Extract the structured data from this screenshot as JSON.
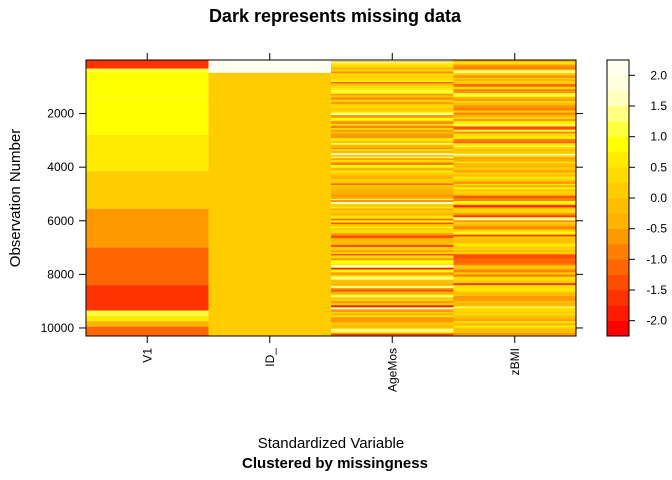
{
  "chart_data": {
    "type": "heatmap",
    "title": "Dark represents missing data",
    "xlabel": "Standardized Variable",
    "xlabel_sub": "Clustered by missingness",
    "ylabel": "Observation Number",
    "ylim": [
      10300,
      1
    ],
    "yticks": [
      2000,
      4000,
      6000,
      8000,
      10000
    ],
    "categories": [
      "V1",
      "ID_",
      "AgeMos",
      "zBMI"
    ],
    "legend": {
      "position": "right",
      "labels": [
        "2.0",
        "1.5",
        "1.0",
        "0.5",
        "0.0",
        "-0.5",
        "-1.0",
        "-1.5",
        "-2.0"
      ],
      "label_values": [
        2.0,
        1.5,
        1.0,
        0.5,
        0.0,
        -0.5,
        -1.0,
        -1.5,
        -2.0
      ],
      "range": [
        -2.25,
        2.25
      ],
      "steps": [
        -2.25,
        -2.0,
        -1.75,
        -1.5,
        -1.25,
        -1.0,
        -0.75,
        -0.5,
        -0.25,
        0.0,
        0.25,
        0.5,
        0.75,
        1.0,
        1.25,
        1.5,
        1.75,
        2.0,
        2.25
      ],
      "colors": [
        "#FF0000",
        "#FF1A00",
        "#FF3300",
        "#FF4D00",
        "#FF6600",
        "#FF8000",
        "#FF9900",
        "#FFB300",
        "#FFBF00",
        "#FFCC00",
        "#FFDB00",
        "#FFEB00",
        "#FFFF00",
        "#FFFF40",
        "#FFFF80",
        "#FFFFBF",
        "#FFFFDF",
        "#FFFFEF"
      ]
    },
    "columns": [
      {
        "name": "V1",
        "segments": [
          {
            "from": 1,
            "to": 320,
            "value": -1.6
          },
          {
            "from": 320,
            "to": 450,
            "value": 1.1
          },
          {
            "from": 450,
            "to": 1450,
            "value": 0.95
          },
          {
            "from": 1450,
            "to": 2800,
            "value": 0.75
          },
          {
            "from": 2800,
            "to": 4150,
            "value": 0.55
          },
          {
            "from": 4150,
            "to": 5550,
            "value": 0.0
          },
          {
            "from": 5550,
            "to": 7000,
            "value": -0.55
          },
          {
            "from": 7000,
            "to": 8400,
            "value": -1.05
          },
          {
            "from": 8400,
            "to": 9350,
            "value": -1.55
          },
          {
            "from": 9350,
            "to": 9550,
            "value": 1.0
          },
          {
            "from": 9550,
            "to": 9750,
            "value": 0.5
          },
          {
            "from": 9750,
            "to": 9950,
            "value": -0.3
          },
          {
            "from": 9950,
            "to": 10300,
            "value": -1.2
          }
        ]
      },
      {
        "name": "ID_",
        "segments": [
          {
            "from": 1,
            "to": 480,
            "value": 2.2
          },
          {
            "from": 480,
            "to": 10300,
            "value": 0.0
          }
        ]
      },
      {
        "name": "AgeMos",
        "noise": true,
        "seed": 7
      },
      {
        "name": "zBMI",
        "noise": true,
        "seed": 19
      }
    ]
  }
}
